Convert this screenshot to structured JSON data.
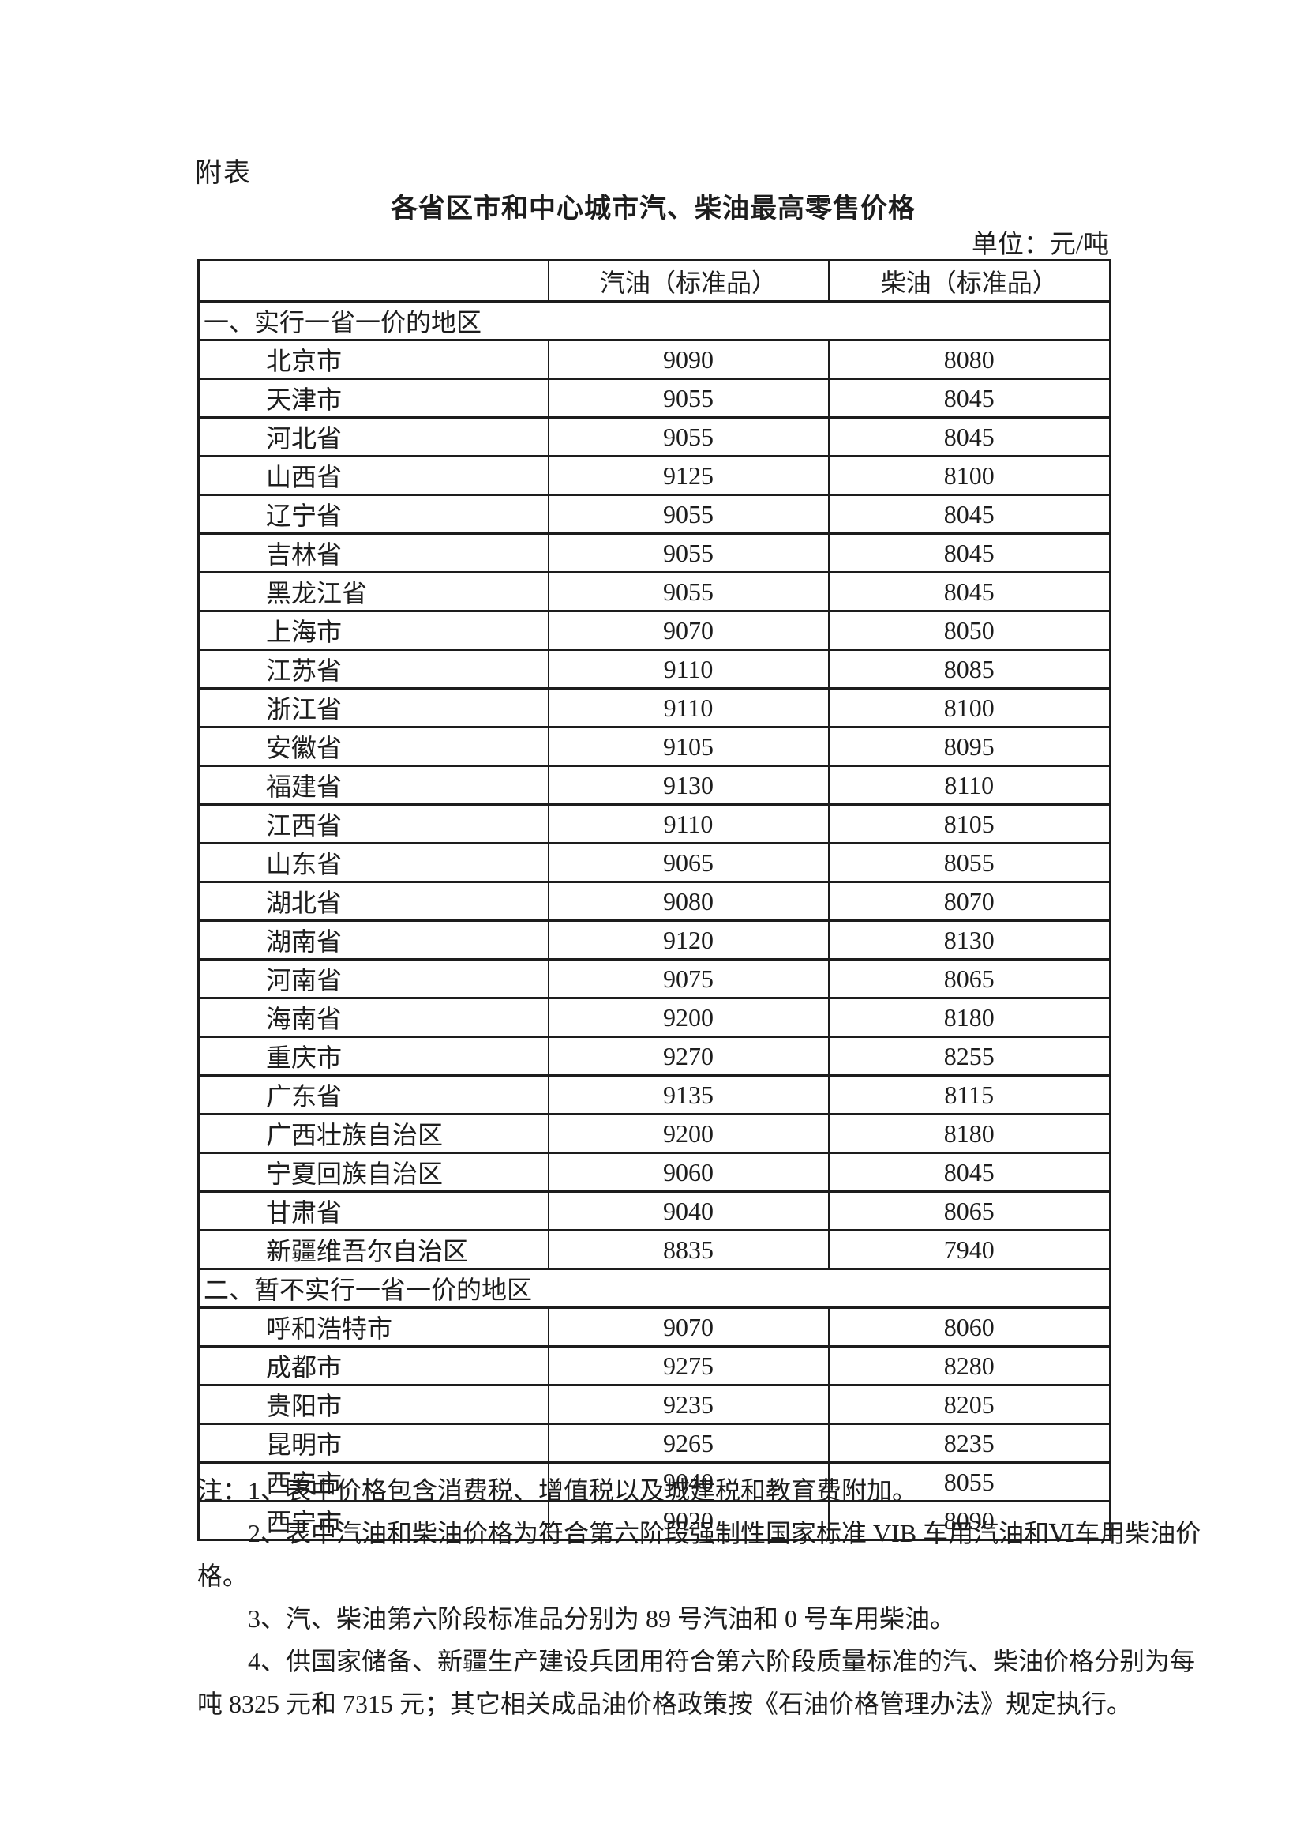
{
  "page": {
    "label": "附表",
    "title": "各省区市和中心城市汽、柴油最高零售价格",
    "unit": "单位：元/吨"
  },
  "table": {
    "columns": [
      "",
      "汽油（标准品）",
      "柴油（标准品）"
    ],
    "sections": [
      {
        "heading": "一、实行一省一价的地区",
        "rows": [
          {
            "region": "北京市",
            "gasoline": "9090",
            "diesel": "8080"
          },
          {
            "region": "天津市",
            "gasoline": "9055",
            "diesel": "8045"
          },
          {
            "region": "河北省",
            "gasoline": "9055",
            "diesel": "8045"
          },
          {
            "region": "山西省",
            "gasoline": "9125",
            "diesel": "8100"
          },
          {
            "region": "辽宁省",
            "gasoline": "9055",
            "diesel": "8045"
          },
          {
            "region": "吉林省",
            "gasoline": "9055",
            "diesel": "8045"
          },
          {
            "region": "黑龙江省",
            "gasoline": "9055",
            "diesel": "8045"
          },
          {
            "region": "上海市",
            "gasoline": "9070",
            "diesel": "8050"
          },
          {
            "region": "江苏省",
            "gasoline": "9110",
            "diesel": "8085"
          },
          {
            "region": "浙江省",
            "gasoline": "9110",
            "diesel": "8100"
          },
          {
            "region": "安徽省",
            "gasoline": "9105",
            "diesel": "8095"
          },
          {
            "region": "福建省",
            "gasoline": "9130",
            "diesel": "8110"
          },
          {
            "region": "江西省",
            "gasoline": "9110",
            "diesel": "8105"
          },
          {
            "region": "山东省",
            "gasoline": "9065",
            "diesel": "8055"
          },
          {
            "region": "湖北省",
            "gasoline": "9080",
            "diesel": "8070"
          },
          {
            "region": "湖南省",
            "gasoline": "9120",
            "diesel": "8130"
          },
          {
            "region": "河南省",
            "gasoline": "9075",
            "diesel": "8065"
          },
          {
            "region": "海南省",
            "gasoline": "9200",
            "diesel": "8180"
          },
          {
            "region": "重庆市",
            "gasoline": "9270",
            "diesel": "8255"
          },
          {
            "region": "广东省",
            "gasoline": "9135",
            "diesel": "8115"
          },
          {
            "region": "广西壮族自治区",
            "gasoline": "9200",
            "diesel": "8180"
          },
          {
            "region": "宁夏回族自治区",
            "gasoline": "9060",
            "diesel": "8045"
          },
          {
            "region": "甘肃省",
            "gasoline": "9040",
            "diesel": "8065"
          },
          {
            "region": "新疆维吾尔自治区",
            "gasoline": "8835",
            "diesel": "7940"
          }
        ]
      },
      {
        "heading": "二、暂不实行一省一价的地区",
        "rows": [
          {
            "region": "呼和浩特市",
            "gasoline": "9070",
            "diesel": "8060"
          },
          {
            "region": "成都市",
            "gasoline": "9275",
            "diesel": "8280"
          },
          {
            "region": "贵阳市",
            "gasoline": "9235",
            "diesel": "8205"
          },
          {
            "region": "昆明市",
            "gasoline": "9265",
            "diesel": "8235"
          },
          {
            "region": "西安市",
            "gasoline": "9040",
            "diesel": "8055"
          },
          {
            "region": "西宁市",
            "gasoline": "9020",
            "diesel": "8090"
          }
        ]
      }
    ]
  },
  "notes": {
    "lines": [
      {
        "text": "注：1、表中价格包含消费税、增值税以及城建税和教育费附加。",
        "indent": false
      },
      {
        "text": "2、表中汽油和柴油价格为符合第六阶段强制性国家标准 VIB 车用汽油和Ⅵ车用柴油价",
        "indent": true
      },
      {
        "text": "格。",
        "indent": false
      },
      {
        "text": "3、汽、柴油第六阶段标准品分别为 89 号汽油和 0 号车用柴油。",
        "indent": true
      },
      {
        "text": "4、供国家储备、新疆生产建设兵团用符合第六阶段质量标准的汽、柴油价格分别为每",
        "indent": true
      },
      {
        "text": "吨 8325 元和 7315 元；其它相关成品油价格政策按《石油价格管理办法》规定执行。",
        "indent": false
      }
    ]
  },
  "colors": {
    "text": "#1d1d1d",
    "border": "#1d1d1d",
    "background": "#ffffff"
  }
}
